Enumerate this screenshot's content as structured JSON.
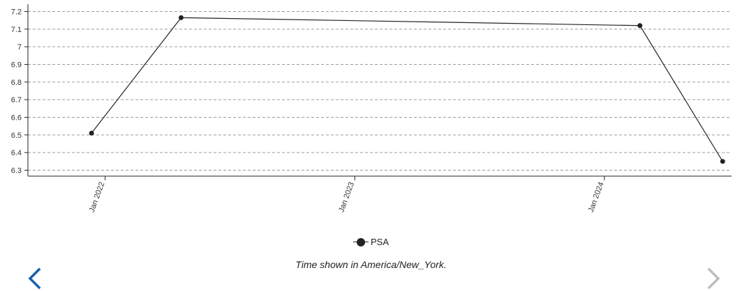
{
  "chart_data": {
    "type": "line",
    "x": [
      "2021-12-12",
      "2022-04-22",
      "2024-02-22",
      "2024-06-22"
    ],
    "series": [
      {
        "name": "PSA",
        "values": [
          6.51,
          7.165,
          7.12,
          6.35
        ],
        "color": "#222222"
      }
    ],
    "yticks": [
      6.3,
      6.4,
      6.5,
      6.6,
      6.7,
      6.8,
      6.9,
      7,
      7.1,
      7.2
    ],
    "ylim": [
      6.26,
      7.24
    ],
    "xticks": [
      {
        "date": "2022-01-01",
        "label": "Jan 2022"
      },
      {
        "date": "2023-01-01",
        "label": "Jan 2023"
      },
      {
        "date": "2024-01-01",
        "label": "Jan 2024"
      }
    ],
    "xlim": [
      "2021-09-10",
      "2024-07-05"
    ],
    "grid": "horizontal dashed",
    "legend_position": "bottom-center"
  },
  "legend": {
    "label": "PSA"
  },
  "footer": {
    "timezone_note": "Time shown in America/New_York."
  },
  "nav": {
    "prev_icon": "chevron-left-icon",
    "next_icon": "chevron-right-icon",
    "prev_color": "#1a5ea8",
    "next_color": "#bdbdbd"
  }
}
